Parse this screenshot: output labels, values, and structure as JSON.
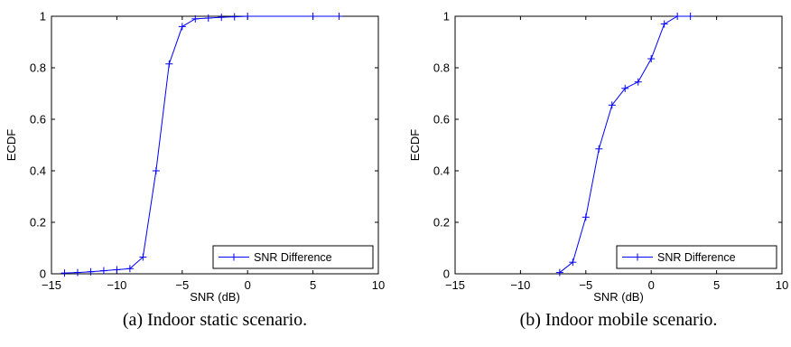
{
  "chart_data": [
    {
      "type": "line",
      "title": "",
      "caption": "(a) Indoor static scenario.",
      "xlabel": "SNR (dB)",
      "ylabel": "ECDF",
      "xlim": [
        -15,
        10
      ],
      "ylim": [
        0,
        1
      ],
      "xticks": [
        -15,
        -10,
        -5,
        0,
        5,
        10
      ],
      "xtick_labels": [
        "−15",
        "−10",
        "−5",
        "0",
        "5",
        "10"
      ],
      "yticks": [
        0,
        0.2,
        0.4,
        0.6,
        0.8,
        1
      ],
      "ytick_labels": [
        "0",
        "0.2",
        "0.4",
        "0.6",
        "0.8",
        "1"
      ],
      "grid": false,
      "legend_position": "bottom-right",
      "series": [
        {
          "name": "SNR Difference",
          "color": "#0000ff",
          "marker": "plus",
          "x": [
            -14,
            -13,
            -12,
            -11,
            -10,
            -9,
            -8,
            -7,
            -6,
            -5,
            -4,
            -3,
            -2,
            -1,
            0,
            5,
            7
          ],
          "y": [
            0.003,
            0.005,
            0.008,
            0.012,
            0.016,
            0.02,
            0.065,
            0.4,
            0.815,
            0.96,
            0.99,
            0.993,
            0.996,
            0.998,
            1.0,
            1.0,
            1.0
          ]
        }
      ]
    },
    {
      "type": "line",
      "title": "",
      "caption": "(b) Indoor mobile scenario.",
      "xlabel": "SNR (dB)",
      "ylabel": "ECDF",
      "xlim": [
        -15,
        10
      ],
      "ylim": [
        0,
        1
      ],
      "xticks": [
        -15,
        -10,
        -5,
        0,
        5,
        10
      ],
      "xtick_labels": [
        "−15",
        "−10",
        "−5",
        "0",
        "5",
        "10"
      ],
      "yticks": [
        0,
        0.2,
        0.4,
        0.6,
        0.8,
        1
      ],
      "ytick_labels": [
        "0",
        "0.2",
        "0.4",
        "0.6",
        "0.8",
        "1"
      ],
      "grid": false,
      "legend_position": "bottom-right",
      "series": [
        {
          "name": "SNR Difference",
          "color": "#0000ff",
          "marker": "plus",
          "x": [
            -7,
            -6,
            -5,
            -4,
            -3,
            -2,
            -1,
            0,
            1,
            2,
            3
          ],
          "y": [
            0.005,
            0.045,
            0.22,
            0.485,
            0.655,
            0.72,
            0.745,
            0.835,
            0.97,
            1.0,
            1.0
          ]
        }
      ]
    }
  ]
}
